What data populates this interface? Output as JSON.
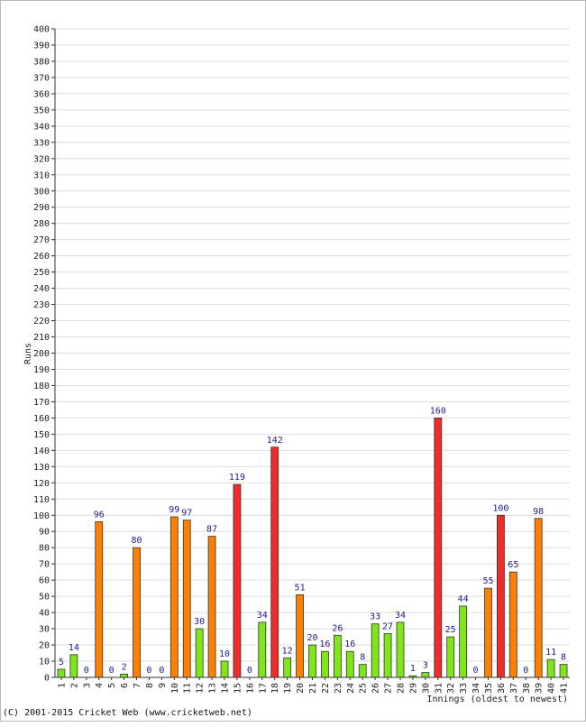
{
  "chart_data": {
    "type": "bar",
    "ylabel": "Runs",
    "xlabel": "Innings (oldest to newest)",
    "ylim": [
      0,
      400
    ],
    "ytick_step": 10,
    "grid": true,
    "legend": "none",
    "categories": [
      "1",
      "2",
      "3",
      "4",
      "5",
      "6",
      "7",
      "8",
      "9",
      "10",
      "11",
      "12",
      "13",
      "14",
      "15",
      "16",
      "17",
      "18",
      "19",
      "20",
      "21",
      "22",
      "23",
      "24",
      "25",
      "26",
      "27",
      "28",
      "29",
      "30",
      "31",
      "32",
      "33",
      "34",
      "35",
      "36",
      "37",
      "38",
      "39",
      "40",
      "41"
    ],
    "values": [
      5,
      14,
      0,
      96,
      0,
      2,
      80,
      0,
      0,
      99,
      97,
      30,
      87,
      10,
      119,
      0,
      34,
      142,
      12,
      51,
      20,
      16,
      26,
      16,
      8,
      33,
      27,
      34,
      1,
      3,
      160,
      25,
      44,
      0,
      55,
      100,
      65,
      0,
      98,
      11,
      8
    ],
    "labels": [
      "5",
      "14",
      "0",
      "96",
      "0",
      "2",
      "80",
      "0",
      "0",
      "99",
      "97",
      "30",
      "87",
      "10",
      "119",
      "0",
      "34",
      "142",
      "12",
      "51",
      "20",
      "16",
      "26",
      "16",
      "8",
      "33",
      "27",
      "34",
      "1",
      "3",
      "160",
      "25",
      "44",
      "0",
      "55",
      "100",
      "65",
      "0",
      "98",
      "11",
      "8"
    ],
    "color_rule": {
      "below_50": "#7fe61a",
      "50_to_99": "#ff8000",
      "100_plus": "#ef2b2b"
    },
    "bar_outline": "#333333",
    "grid_color": "#dcdcdc"
  },
  "footer": {
    "copyright": "(C) 2001-2015 Cricket Web (www.cricketweb.net)"
  }
}
